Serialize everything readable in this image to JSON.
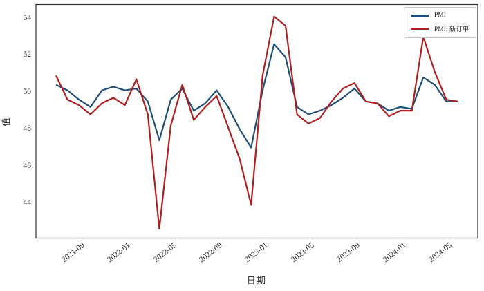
{
  "chart_data": {
    "type": "line",
    "xlabel": "日期",
    "ylabel": "值",
    "grid": false,
    "legend_position": "upper-right",
    "ylim": [
      42.1,
      54.75
    ],
    "yticks": [
      44,
      46,
      48,
      50,
      52,
      54
    ],
    "visible_xticks": [
      "2021-09",
      "2022-01",
      "2022-05",
      "2022-09",
      "2023-01",
      "2023-05",
      "2023-09",
      "2024-01",
      "2024-05"
    ],
    "x": [
      "2021-07",
      "2021-08",
      "2021-09",
      "2021-10",
      "2021-11",
      "2021-12",
      "2022-01",
      "2022-02",
      "2022-03",
      "2022-04",
      "2022-05",
      "2022-06",
      "2022-07",
      "2022-08",
      "2022-09",
      "2022-10",
      "2022-11",
      "2022-12",
      "2023-01",
      "2023-02",
      "2023-03",
      "2023-04",
      "2023-05",
      "2023-06",
      "2023-07",
      "2023-08",
      "2023-09",
      "2023-10",
      "2023-11",
      "2023-12",
      "2024-01",
      "2024-02",
      "2024-03",
      "2024-04",
      "2024-05",
      "2024-06"
    ],
    "series": [
      {
        "name": "PMI",
        "color": "#1f4e79",
        "values": [
          50.4,
          50.1,
          49.6,
          49.2,
          50.1,
          50.3,
          50.1,
          50.2,
          49.5,
          47.4,
          49.6,
          50.2,
          49.0,
          49.4,
          50.1,
          49.2,
          48.0,
          47.0,
          50.1,
          52.6,
          51.9,
          49.2,
          48.8,
          49.0,
          49.3,
          49.7,
          50.2,
          49.5,
          49.4,
          49.0,
          49.2,
          49.1,
          50.8,
          50.4,
          49.5,
          49.5
        ]
      },
      {
        "name": "PMI: 新订单",
        "color": "#b01e1e",
        "values": [
          50.9,
          49.6,
          49.3,
          48.8,
          49.4,
          49.7,
          49.3,
          50.7,
          48.8,
          42.6,
          48.2,
          50.4,
          48.5,
          49.2,
          49.8,
          48.1,
          46.4,
          43.9,
          50.9,
          54.1,
          53.6,
          48.8,
          48.3,
          48.6,
          49.5,
          50.2,
          50.5,
          49.5,
          49.4,
          48.7,
          49.0,
          49.0,
          53.0,
          51.1,
          49.6,
          49.5
        ]
      }
    ]
  }
}
